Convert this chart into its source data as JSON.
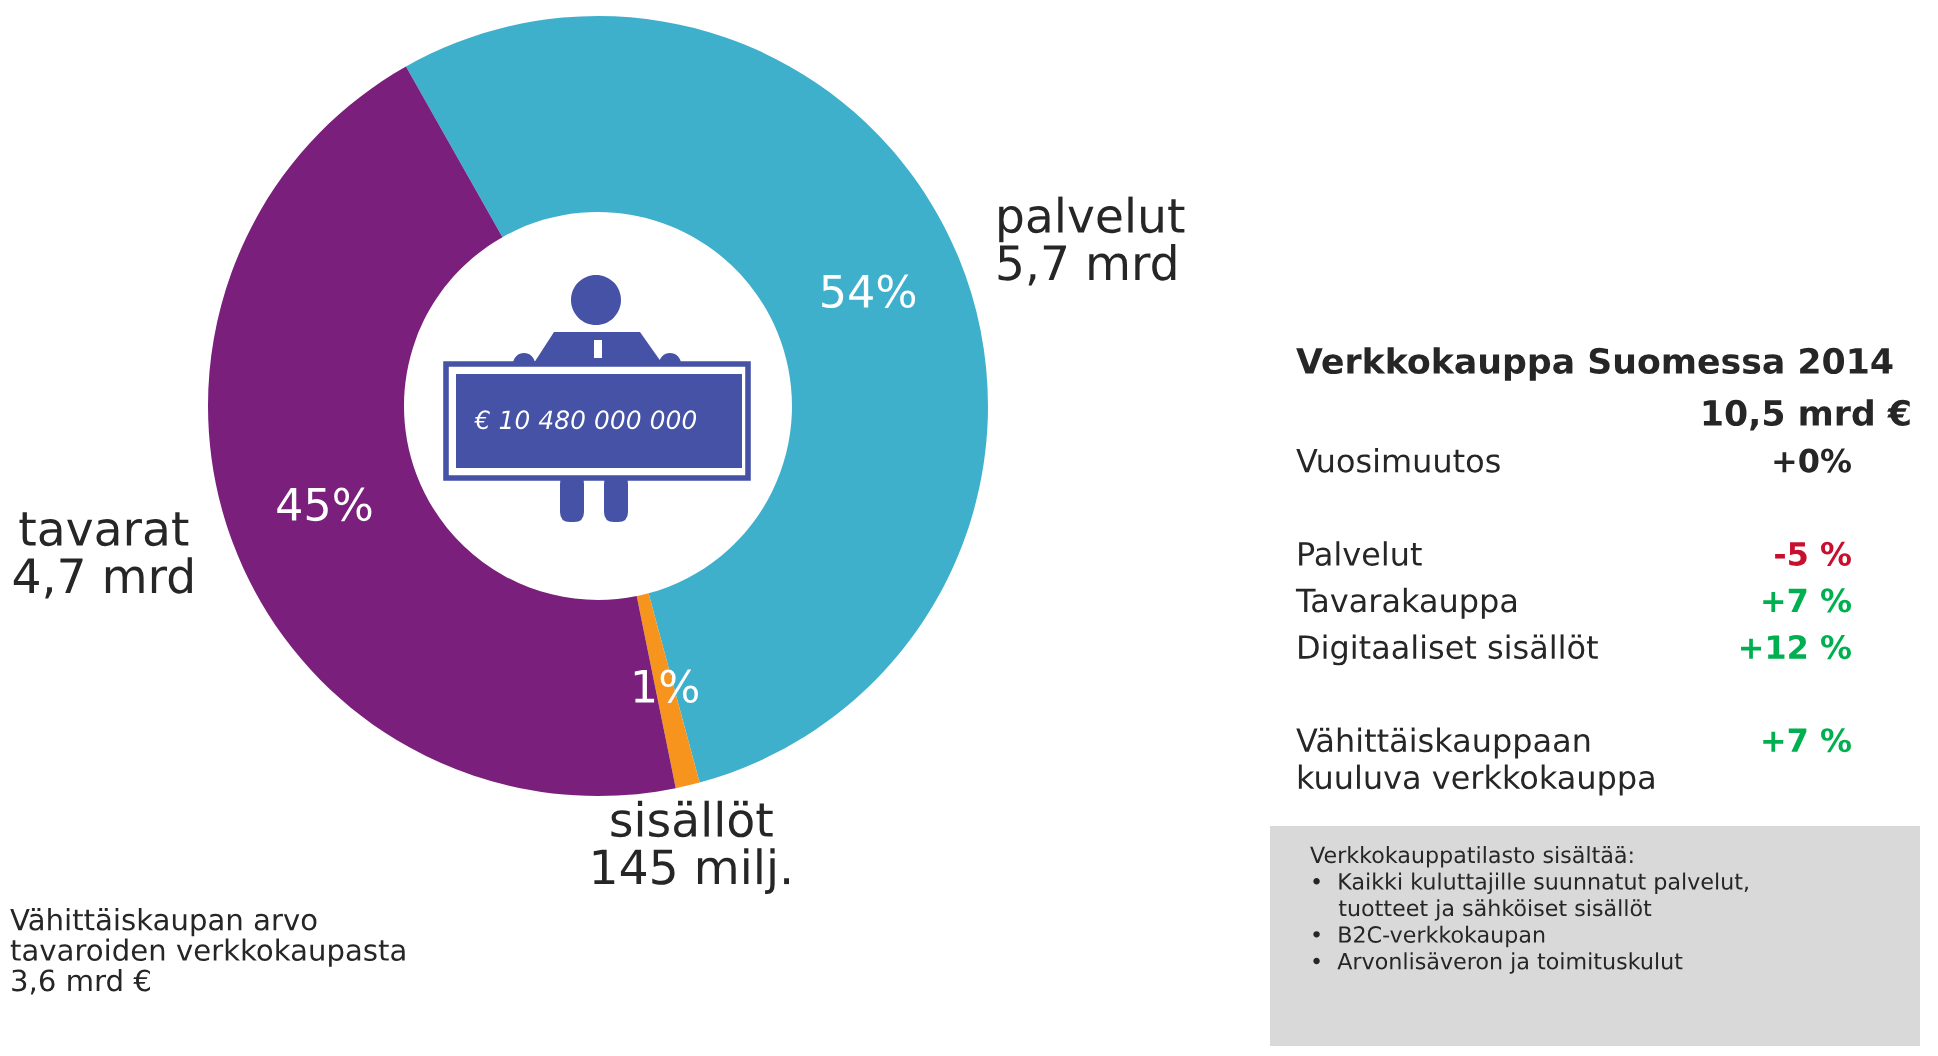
{
  "chart_data": [
    {
      "type": "donut",
      "categories": [
        "palvelut\n5,7 mrd",
        "sisällöt\n145 milj.",
        "tavarat\n4,7 mrd"
      ],
      "values": [
        54,
        1,
        45
      ],
      "colors": [
        "#3fb0cc",
        "#f7941d",
        "#7a1f7c"
      ],
      "value_labels": [
        "54%",
        "1%",
        "45%"
      ],
      "annotations": [
        "€ 10 480 000 000",
        "Vähittäiskaupan arvo\ntavaroiden verkkokaupasta\n3,6 mrd €"
      ]
    },
    {
      "type": "other",
      "title": "Verkkokauppa Suomessa 2014",
      "subtitle": "10,5 mrd €",
      "categories": [
        "Vuosimuutos",
        null,
        "Palvelut",
        "Tavarakauppa",
        "Digitaaliset sisällöt",
        null,
        "Vähittäiskauppaan\nkuuluva verkkokauppa"
      ],
      "value_labels": [
        "+0%",
        null,
        "-5 %",
        "+7 %",
        "+12 %",
        null,
        "+7 %"
      ],
      "colors": [
        "#262626",
        null,
        "#c8102e",
        "#00b050",
        "#00b050",
        null,
        "#00b050"
      ],
      "annotations": [
        "Verkkokauppatilasto sisältää:\n•  Kaikki kuluttajille suunnatut palvelut,\n    tuotteet ja sähköiset sisällöt\n•  B2C-verkkokaupan\n•  Arvonlisäveron ja toimituskulut"
      ]
    }
  ]
}
